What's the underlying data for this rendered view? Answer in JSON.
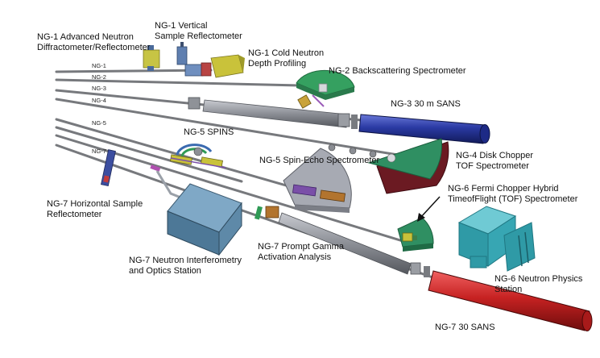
{
  "guide_labels": {
    "ng1": "NG-1",
    "ng2": "NG-2",
    "ng3": "NG-3",
    "ng4": "NG-4",
    "ng5": "NG-5",
    "ng7": "NG-7"
  },
  "instruments": {
    "ng1_advanced": "NG-1 Advanced Neutron\nDiffractometer/Reflectometer",
    "ng1_vertical": "NG-1 Vertical\nSample Reflectometer",
    "ng1_cold": "NG-1 Cold Neutron\nDepth Profiling",
    "ng2_backscattering": "NG-2 Backscattering Spectrometer",
    "ng3_sans": "NG-3 30 m SANS",
    "ng5_spins": "NG-5 SPINS",
    "ng4_disk": "NG-4 Disk Chopper\nTOF Spectrometer",
    "ng5_spin_echo": "NG-5 Spin-Echo Spectrometer",
    "ng6_fermi": "NG-6 Fermi Chopper Hybrid\nTimeofFlight (TOF) Spectrometer",
    "ng7_horizontal": "NG-7 Horizontal Sample\nReflectometer",
    "ng7_prompt_gamma": "NG-7 Prompt Gamma\nActivation Analysis",
    "ng7_interferometry": "NG-7 Neutron Interferometry\nand Optics Station",
    "ng6_physics": "NG-6 Neutron Physics\nStation",
    "ng7_sans": "NG-7 30 SANS"
  },
  "colors": {
    "guide": "#8a8d91",
    "sans_ng3": "#2a3aa3",
    "sans_ng7": "#c62222",
    "disk_chopper": "#2f8f62",
    "interferometry": "#5b8aa8",
    "physics_station": "#37a6b3",
    "shield_gray": "#a7aab3",
    "cold_yellow": "#c9c23a",
    "backscatter_green": "#35a060"
  }
}
